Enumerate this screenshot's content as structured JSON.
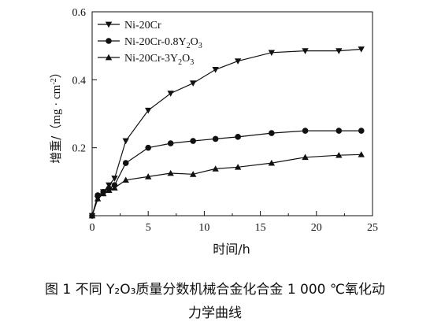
{
  "figure": {
    "caption_line1": "图 1   不同 Y₂O₃质量分数机械合金化合金 1 000 ℃氧化动",
    "caption_line2": "力学曲线"
  },
  "chart_data": {
    "type": "line",
    "xlabel": "时间/h",
    "ylabel_prefix": "增重/（",
    "ylabel_unit": "mg · cm",
    "ylabel_sup": "-2",
    "ylabel_suffix": "）",
    "xlim": [
      0,
      25
    ],
    "ylim": [
      0,
      0.6
    ],
    "x_ticks": [
      0,
      5,
      10,
      15,
      20,
      25
    ],
    "x_tick_labels": [
      "0",
      "5",
      "10",
      "15",
      "20",
      "25"
    ],
    "y_ticks": [
      0.2,
      0.4,
      0.6
    ],
    "y_tick_labels": [
      "0.2",
      "0.4",
      "0.6"
    ],
    "grid": false,
    "legend_position": "top-left",
    "series": [
      {
        "name": "Ni-20Cr",
        "label_main": "Ni-20Cr",
        "label_tail": "",
        "marker": "triangle-down",
        "x": [
          0,
          0.5,
          1,
          1.5,
          2,
          3,
          5,
          7,
          9,
          11,
          13,
          16,
          19,
          22,
          24
        ],
        "y": [
          0,
          0.05,
          0.07,
          0.09,
          0.11,
          0.22,
          0.31,
          0.36,
          0.39,
          0.43,
          0.455,
          0.48,
          0.485,
          0.485,
          0.49
        ]
      },
      {
        "name": "Ni-20Cr-0.8Y2O3",
        "label_main": "Ni-20Cr-0.8Y",
        "label_sub1": "2",
        "label_mid": "O",
        "label_sub2": "3",
        "marker": "circle",
        "x": [
          0,
          0.5,
          1,
          1.5,
          2,
          3,
          5,
          7,
          9,
          11,
          13,
          16,
          19,
          22,
          24
        ],
        "y": [
          0,
          0.06,
          0.07,
          0.08,
          0.09,
          0.155,
          0.2,
          0.213,
          0.22,
          0.226,
          0.232,
          0.243,
          0.25,
          0.25,
          0.25
        ]
      },
      {
        "name": "Ni-20Cr-3Y2O3",
        "label_main": "Ni-20Cr-3Y",
        "label_sub1": "2",
        "label_mid": "O",
        "label_sub2": "3",
        "marker": "triangle-up",
        "x": [
          0,
          0.5,
          1,
          1.5,
          2,
          3,
          5,
          7,
          9,
          11,
          13,
          16,
          19,
          22,
          24
        ],
        "y": [
          0,
          0.05,
          0.065,
          0.075,
          0.082,
          0.105,
          0.115,
          0.125,
          0.122,
          0.138,
          0.143,
          0.155,
          0.172,
          0.178,
          0.18
        ]
      }
    ]
  }
}
